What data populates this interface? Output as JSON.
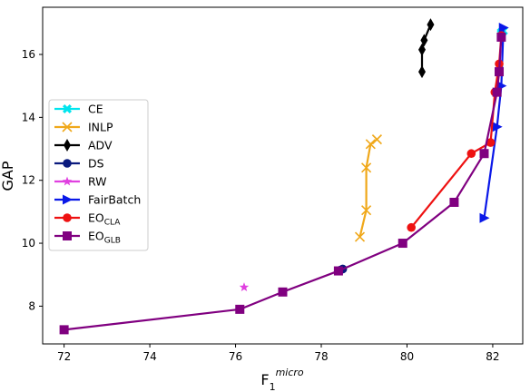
{
  "chart_data": {
    "type": "line",
    "xlabel": "F",
    "xlabel_sub": "1",
    "xlabel_sup": "micro",
    "ylabel": "GAP",
    "xlim": [
      71.5,
      82.7
    ],
    "ylim": [
      6.8,
      17.5
    ],
    "x_ticks": [
      72,
      74,
      76,
      78,
      80,
      82
    ],
    "y_ticks": [
      8,
      10,
      12,
      14,
      16
    ],
    "grid": false,
    "legend_position": "center-left",
    "series": [
      {
        "name": "CE",
        "label": "CE",
        "color": "#00e5ee",
        "marker": "X",
        "points": [
          [
            82.2,
            16.7
          ],
          [
            82.25,
            16.75
          ],
          [
            82.2,
            16.65
          ]
        ]
      },
      {
        "name": "INLP",
        "label": "INLP",
        "color": "#f0a81a",
        "marker": "x",
        "points": [
          [
            78.9,
            10.2
          ],
          [
            79.05,
            11.05
          ],
          [
            79.05,
            12.4
          ],
          [
            79.15,
            13.15
          ],
          [
            79.3,
            13.3
          ]
        ]
      },
      {
        "name": "ADV",
        "label": "ADV",
        "color": "#000000",
        "marker": "diamond",
        "points": [
          [
            80.35,
            15.45
          ],
          [
            80.35,
            16.15
          ],
          [
            80.4,
            16.45
          ],
          [
            80.55,
            16.95
          ]
        ]
      },
      {
        "name": "DS",
        "label": "DS",
        "color": "#0a1a7e",
        "marker": "circle",
        "points": [
          [
            78.45,
            9.15
          ],
          [
            78.5,
            9.18
          ]
        ]
      },
      {
        "name": "RW",
        "label": "RW",
        "color": "#e040e0",
        "marker": "star",
        "points": [
          [
            76.2,
            8.6
          ]
        ]
      },
      {
        "name": "FairBatch",
        "label": "FairBatch",
        "color": "#0a18e8",
        "marker": "triangle-right",
        "points": [
          [
            81.8,
            10.8
          ],
          [
            82.1,
            13.7
          ],
          [
            82.2,
            15.0
          ],
          [
            82.25,
            16.85
          ]
        ]
      },
      {
        "name": "EO_CLA",
        "label": "EO",
        "label_sub": "CLA",
        "color": "#ee1111",
        "marker": "circle",
        "points": [
          [
            80.1,
            10.5
          ],
          [
            81.5,
            12.85
          ],
          [
            81.95,
            13.2
          ],
          [
            82.05,
            14.8
          ],
          [
            82.15,
            15.7
          ],
          [
            82.2,
            16.6
          ]
        ]
      },
      {
        "name": "EO_GLB",
        "label": "EO",
        "label_sub": "GLB",
        "color": "#800080",
        "marker": "square",
        "points": [
          [
            72.0,
            7.25
          ],
          [
            76.1,
            7.9
          ],
          [
            77.1,
            8.45
          ],
          [
            78.4,
            9.12
          ],
          [
            79.9,
            10.0
          ],
          [
            81.1,
            11.3
          ],
          [
            81.8,
            12.85
          ],
          [
            82.1,
            14.8
          ],
          [
            82.15,
            15.45
          ],
          [
            82.2,
            16.55
          ]
        ]
      }
    ]
  }
}
